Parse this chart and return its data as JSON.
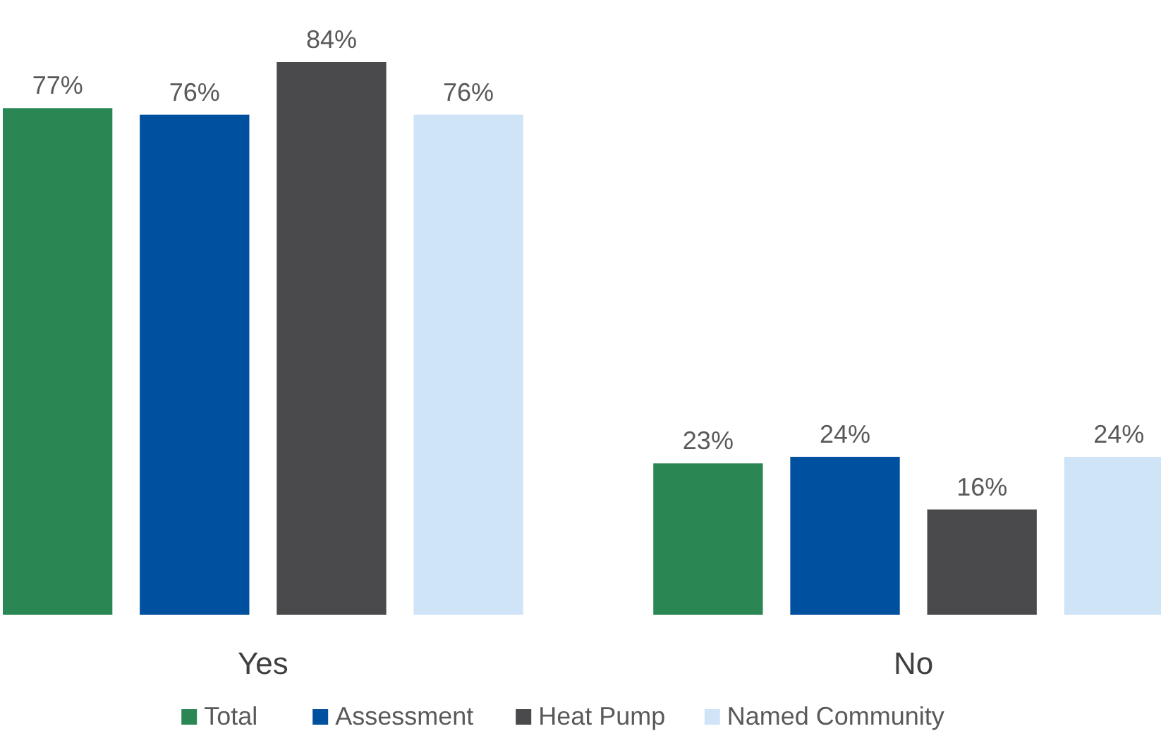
{
  "chart_data": {
    "type": "bar",
    "categories": [
      "Yes",
      "No"
    ],
    "legend": "bottom",
    "series": [
      {
        "name": "Total",
        "color": "#2a8754",
        "values": [
          77,
          23
        ],
        "value_labels": [
          "77%",
          "23%"
        ]
      },
      {
        "name": "Assessment",
        "color": "#0050a0",
        "values": [
          76,
          24
        ],
        "value_labels": [
          "76%",
          "24%"
        ]
      },
      {
        "name": "Heat Pump",
        "color": "#4a4a4c",
        "values": [
          84,
          16
        ],
        "value_labels": [
          "84%",
          "16%"
        ]
      },
      {
        "name": "Named Community",
        "color": "#d0e4f7",
        "values": [
          76,
          24
        ],
        "value_labels": [
          "76%",
          "24%"
        ]
      }
    ]
  }
}
